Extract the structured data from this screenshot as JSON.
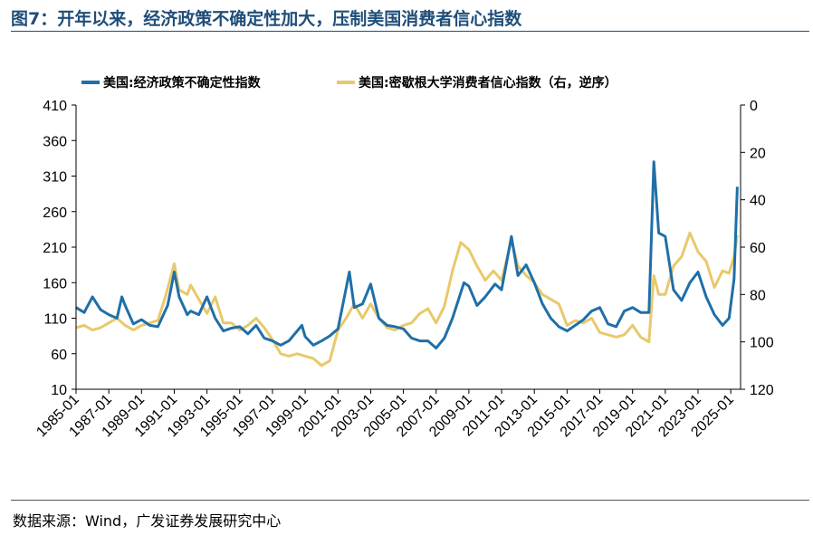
{
  "figure": {
    "title": "图7：开年以来，经济政策不确定性加大，压制美国消费者信心指数",
    "source": "数据来源：Wind，广发证券发展研究中心"
  },
  "colors": {
    "series1": "#1f6fa8",
    "series2": "#e8c96b",
    "title": "#1f4e79",
    "axis": "#000000"
  },
  "chart_data": {
    "type": "line",
    "legend_position": "top",
    "grid": false,
    "x_tick_labels": [
      "1985-01",
      "1987-01",
      "1989-01",
      "1991-01",
      "1993-01",
      "1995-01",
      "1997-01",
      "1999-01",
      "2001-01",
      "2003-01",
      "2005-01",
      "2007-01",
      "2009-01",
      "2011-01",
      "2013-01",
      "2015-01",
      "2017-01",
      "2019-01",
      "2021-01",
      "2023-01",
      "2025-01"
    ],
    "xlim": [
      1985.0,
      2025.6
    ],
    "y_left": {
      "ylim": [
        10,
        410
      ],
      "ticks": [
        10,
        60,
        110,
        160,
        210,
        260,
        310,
        360,
        410
      ]
    },
    "y_right": {
      "ylim": [
        0,
        120
      ],
      "ticks": [
        0,
        20,
        40,
        60,
        80,
        100,
        120
      ],
      "inverted": true
    },
    "series": [
      {
        "name": "美国:经济政策不确定性指数",
        "axis": "left",
        "points": [
          [
            1985.0,
            125
          ],
          [
            1985.5,
            118
          ],
          [
            1986.0,
            140
          ],
          [
            1986.5,
            122
          ],
          [
            1987.0,
            115
          ],
          [
            1987.5,
            110
          ],
          [
            1987.8,
            140
          ],
          [
            1988.0,
            128
          ],
          [
            1988.5,
            102
          ],
          [
            1989.0,
            108
          ],
          [
            1989.5,
            100
          ],
          [
            1990.0,
            98
          ],
          [
            1990.6,
            128
          ],
          [
            1991.0,
            175
          ],
          [
            1991.3,
            140
          ],
          [
            1991.8,
            115
          ],
          [
            1992.0,
            120
          ],
          [
            1992.5,
            115
          ],
          [
            1993.0,
            140
          ],
          [
            1993.5,
            110
          ],
          [
            1994.0,
            92
          ],
          [
            1994.5,
            96
          ],
          [
            1995.0,
            98
          ],
          [
            1995.5,
            88
          ],
          [
            1996.0,
            100
          ],
          [
            1996.5,
            82
          ],
          [
            1997.0,
            78
          ],
          [
            1997.5,
            72
          ],
          [
            1998.0,
            78
          ],
          [
            1998.8,
            100
          ],
          [
            1999.0,
            84
          ],
          [
            1999.5,
            72
          ],
          [
            2000.0,
            78
          ],
          [
            2000.5,
            85
          ],
          [
            2001.0,
            95
          ],
          [
            2001.7,
            175
          ],
          [
            2002.0,
            125
          ],
          [
            2002.5,
            130
          ],
          [
            2003.0,
            158
          ],
          [
            2003.5,
            110
          ],
          [
            2004.0,
            100
          ],
          [
            2004.5,
            98
          ],
          [
            2005.0,
            95
          ],
          [
            2005.5,
            82
          ],
          [
            2006.0,
            78
          ],
          [
            2006.5,
            78
          ],
          [
            2007.0,
            68
          ],
          [
            2007.5,
            82
          ],
          [
            2008.0,
            110
          ],
          [
            2008.7,
            160
          ],
          [
            2009.0,
            155
          ],
          [
            2009.5,
            128
          ],
          [
            2010.0,
            140
          ],
          [
            2010.6,
            158
          ],
          [
            2011.0,
            150
          ],
          [
            2011.6,
            225
          ],
          [
            2012.0,
            170
          ],
          [
            2012.5,
            185
          ],
          [
            2013.0,
            160
          ],
          [
            2013.5,
            130
          ],
          [
            2014.0,
            110
          ],
          [
            2014.5,
            98
          ],
          [
            2015.0,
            92
          ],
          [
            2015.5,
            100
          ],
          [
            2016.0,
            108
          ],
          [
            2016.5,
            120
          ],
          [
            2017.0,
            125
          ],
          [
            2017.5,
            102
          ],
          [
            2018.0,
            98
          ],
          [
            2018.5,
            120
          ],
          [
            2019.0,
            125
          ],
          [
            2019.5,
            118
          ],
          [
            2020.0,
            118
          ],
          [
            2020.3,
            330
          ],
          [
            2020.6,
            230
          ],
          [
            2021.0,
            225
          ],
          [
            2021.5,
            150
          ],
          [
            2022.0,
            135
          ],
          [
            2022.5,
            160
          ],
          [
            2023.0,
            175
          ],
          [
            2023.5,
            140
          ],
          [
            2024.0,
            115
          ],
          [
            2024.5,
            100
          ],
          [
            2024.9,
            110
          ],
          [
            2025.2,
            165
          ],
          [
            2025.4,
            295
          ]
        ]
      },
      {
        "name": "美国:密歇根大学消费者信心指数（右，逆序）",
        "axis": "right",
        "points": [
          [
            1985.0,
            94
          ],
          [
            1985.5,
            93
          ],
          [
            1986.0,
            95
          ],
          [
            1986.5,
            94
          ],
          [
            1987.0,
            92
          ],
          [
            1987.5,
            90
          ],
          [
            1988.0,
            93
          ],
          [
            1988.5,
            95
          ],
          [
            1989.0,
            93
          ],
          [
            1989.5,
            92
          ],
          [
            1990.0,
            91
          ],
          [
            1990.5,
            80
          ],
          [
            1991.0,
            67
          ],
          [
            1991.3,
            78
          ],
          [
            1991.8,
            80
          ],
          [
            1992.0,
            76
          ],
          [
            1992.5,
            82
          ],
          [
            1993.0,
            88
          ],
          [
            1993.5,
            81
          ],
          [
            1994.0,
            92
          ],
          [
            1994.5,
            92
          ],
          [
            1995.0,
            95
          ],
          [
            1995.5,
            93
          ],
          [
            1996.0,
            90
          ],
          [
            1996.5,
            94
          ],
          [
            1997.0,
            99
          ],
          [
            1997.5,
            105
          ],
          [
            1998.0,
            106
          ],
          [
            1998.5,
            105
          ],
          [
            1999.0,
            106
          ],
          [
            1999.5,
            107
          ],
          [
            2000.0,
            110
          ],
          [
            2000.5,
            108
          ],
          [
            2001.0,
            95
          ],
          [
            2001.5,
            90
          ],
          [
            2002.0,
            84
          ],
          [
            2002.5,
            90
          ],
          [
            2003.0,
            84
          ],
          [
            2003.5,
            90
          ],
          [
            2004.0,
            94
          ],
          [
            2004.5,
            95
          ],
          [
            2005.0,
            93
          ],
          [
            2005.5,
            92
          ],
          [
            2006.0,
            88
          ],
          [
            2006.5,
            86
          ],
          [
            2007.0,
            92
          ],
          [
            2007.5,
            85
          ],
          [
            2008.0,
            70
          ],
          [
            2008.5,
            58
          ],
          [
            2009.0,
            61
          ],
          [
            2009.5,
            68
          ],
          [
            2010.0,
            74
          ],
          [
            2010.5,
            70
          ],
          [
            2011.0,
            74
          ],
          [
            2011.6,
            57
          ],
          [
            2012.0,
            68
          ],
          [
            2012.5,
            72
          ],
          [
            2013.0,
            75
          ],
          [
            2013.5,
            80
          ],
          [
            2014.0,
            82
          ],
          [
            2014.5,
            84
          ],
          [
            2015.0,
            93
          ],
          [
            2015.5,
            91
          ],
          [
            2016.0,
            92
          ],
          [
            2016.5,
            90
          ],
          [
            2017.0,
            96
          ],
          [
            2017.5,
            97
          ],
          [
            2018.0,
            98
          ],
          [
            2018.5,
            97
          ],
          [
            2019.0,
            93
          ],
          [
            2019.5,
            98
          ],
          [
            2020.0,
            100
          ],
          [
            2020.3,
            72
          ],
          [
            2020.6,
            80
          ],
          [
            2021.0,
            80
          ],
          [
            2021.5,
            68
          ],
          [
            2022.0,
            64
          ],
          [
            2022.5,
            54
          ],
          [
            2023.0,
            62
          ],
          [
            2023.5,
            66
          ],
          [
            2024.0,
            77
          ],
          [
            2024.5,
            70
          ],
          [
            2024.9,
            71
          ],
          [
            2025.2,
            64
          ],
          [
            2025.4,
            55
          ]
        ]
      }
    ]
  }
}
